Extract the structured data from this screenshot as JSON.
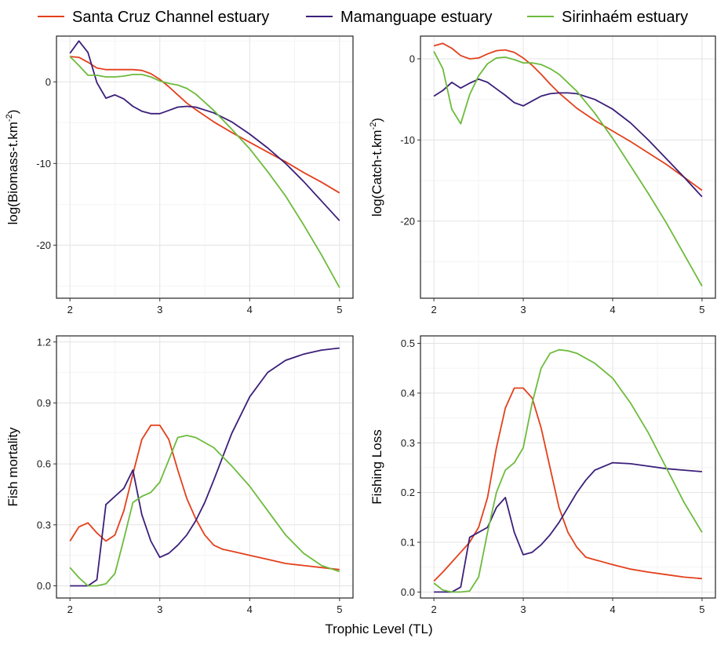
{
  "figure": {
    "xlabel": "Trophic Level (TL)"
  },
  "legend": [
    {
      "label": "Santa Cruz Channel estuary",
      "color": "#E3401C"
    },
    {
      "label": "Mamanguape estuary",
      "color": "#3B1F7A"
    },
    {
      "label": "Sirinhaém estuary",
      "color": "#6DBB3C"
    }
  ],
  "chart_data": [
    {
      "type": "line",
      "ylabel": "log(Biomass-t.km",
      "ylabel_sup": "-2",
      "ylabel_end": ")",
      "xlim": [
        1.85,
        5.15
      ],
      "ylim": [
        -26.5,
        5.6
      ],
      "xticks": [
        2,
        3,
        4,
        5
      ],
      "yticks": [
        0,
        -10,
        -20
      ],
      "grid": true,
      "series": [
        {
          "name": "Santa Cruz Channel estuary",
          "color": "#E3401C",
          "x": [
            2.0,
            2.1,
            2.2,
            2.3,
            2.4,
            2.5,
            2.6,
            2.7,
            2.8,
            2.9,
            3.0,
            3.1,
            3.2,
            3.3,
            3.4,
            3.6,
            3.8,
            4.0,
            4.2,
            4.4,
            4.6,
            4.8,
            5.0
          ],
          "y": [
            3.1,
            3.0,
            2.4,
            1.7,
            1.5,
            1.5,
            1.5,
            1.5,
            1.4,
            1.0,
            0.3,
            -0.6,
            -1.6,
            -2.6,
            -3.4,
            -4.9,
            -6.2,
            -7.4,
            -8.6,
            -9.8,
            -11.1,
            -12.3,
            -13.6
          ]
        },
        {
          "name": "Mamanguape estuary",
          "color": "#3B1F7A",
          "x": [
            2.0,
            2.1,
            2.2,
            2.3,
            2.4,
            2.5,
            2.6,
            2.7,
            2.8,
            2.9,
            3.0,
            3.1,
            3.2,
            3.3,
            3.4,
            3.6,
            3.8,
            4.0,
            4.2,
            4.4,
            4.6,
            4.8,
            5.0
          ],
          "y": [
            3.5,
            5.0,
            3.6,
            -0.1,
            -2.0,
            -1.6,
            -2.1,
            -3.0,
            -3.6,
            -3.9,
            -3.9,
            -3.5,
            -3.1,
            -3.0,
            -3.1,
            -3.8,
            -4.9,
            -6.4,
            -8.1,
            -10.0,
            -12.2,
            -14.6,
            -17.0
          ]
        },
        {
          "name": "Sirinhaém estuary",
          "color": "#6DBB3C",
          "x": [
            2.0,
            2.1,
            2.2,
            2.3,
            2.4,
            2.5,
            2.6,
            2.7,
            2.8,
            2.9,
            3.0,
            3.1,
            3.2,
            3.3,
            3.4,
            3.6,
            3.8,
            4.0,
            4.2,
            4.4,
            4.6,
            4.8,
            5.0
          ],
          "y": [
            3.1,
            2.0,
            0.8,
            0.8,
            0.6,
            0.6,
            0.7,
            0.9,
            0.9,
            0.6,
            0.1,
            -0.2,
            -0.4,
            -0.8,
            -1.5,
            -3.5,
            -5.8,
            -8.2,
            -11.0,
            -14.0,
            -17.5,
            -21.2,
            -25.2
          ]
        }
      ]
    },
    {
      "type": "line",
      "ylabel": "log(Catch-t.km",
      "ylabel_sup": "-2",
      "ylabel_end": ")",
      "xlim": [
        1.85,
        5.15
      ],
      "ylim": [
        -29.5,
        2.8
      ],
      "xticks": [
        2,
        3,
        4,
        5
      ],
      "yticks": [
        0,
        -10,
        -20
      ],
      "grid": true,
      "series": [
        {
          "name": "Santa Cruz Channel estuary",
          "color": "#E3401C",
          "x": [
            2.0,
            2.1,
            2.2,
            2.3,
            2.4,
            2.5,
            2.6,
            2.7,
            2.8,
            2.9,
            3.0,
            3.1,
            3.2,
            3.3,
            3.4,
            3.6,
            3.8,
            4.0,
            4.2,
            4.4,
            4.6,
            4.8,
            5.0
          ],
          "y": [
            1.6,
            1.9,
            1.3,
            0.4,
            0.0,
            0.1,
            0.6,
            1.0,
            1.1,
            0.8,
            0.1,
            -0.8,
            -1.9,
            -3.1,
            -4.2,
            -6.1,
            -7.6,
            -8.9,
            -10.2,
            -11.6,
            -13.0,
            -14.6,
            -16.2
          ]
        },
        {
          "name": "Mamanguape estuary",
          "color": "#3B1F7A",
          "x": [
            2.0,
            2.1,
            2.2,
            2.3,
            2.4,
            2.5,
            2.6,
            2.7,
            2.8,
            2.9,
            3.0,
            3.1,
            3.2,
            3.3,
            3.4,
            3.5,
            3.6,
            3.8,
            4.0,
            4.2,
            4.4,
            4.6,
            4.8,
            5.0
          ],
          "y": [
            -4.6,
            -3.9,
            -2.9,
            -3.6,
            -3.0,
            -2.5,
            -2.9,
            -3.7,
            -4.5,
            -5.4,
            -5.8,
            -5.2,
            -4.6,
            -4.3,
            -4.2,
            -4.2,
            -4.3,
            -5.0,
            -6.2,
            -7.9,
            -10.0,
            -12.3,
            -14.6,
            -17.0
          ]
        },
        {
          "name": "Sirinhaém estuary",
          "color": "#6DBB3C",
          "x": [
            2.0,
            2.1,
            2.2,
            2.3,
            2.4,
            2.5,
            2.6,
            2.7,
            2.8,
            2.9,
            3.0,
            3.1,
            3.2,
            3.3,
            3.4,
            3.6,
            3.8,
            4.0,
            4.2,
            4.4,
            4.6,
            4.8,
            5.0
          ],
          "y": [
            0.9,
            -1.2,
            -6.2,
            -8.0,
            -4.4,
            -2.1,
            -0.6,
            0.1,
            0.2,
            -0.1,
            -0.5,
            -0.5,
            -0.7,
            -1.2,
            -1.9,
            -4.0,
            -6.7,
            -9.8,
            -13.2,
            -16.6,
            -20.2,
            -24.1,
            -28.0
          ]
        }
      ]
    },
    {
      "type": "line",
      "ylabel": "Fish mortality",
      "xlim": [
        1.85,
        5.15
      ],
      "ylim": [
        -0.06,
        1.23
      ],
      "xticks": [
        2,
        3,
        4,
        5
      ],
      "yticks": [
        0.0,
        0.3,
        0.6,
        0.9,
        1.2
      ],
      "ytick_labels": [
        "0.0",
        "0.3",
        "0.6",
        "0.9",
        "1.2"
      ],
      "grid": true,
      "series": [
        {
          "name": "Santa Cruz Channel estuary",
          "color": "#E3401C",
          "x": [
            2.0,
            2.1,
            2.2,
            2.3,
            2.4,
            2.5,
            2.6,
            2.7,
            2.8,
            2.9,
            3.0,
            3.1,
            3.2,
            3.3,
            3.4,
            3.5,
            3.6,
            3.7,
            3.8,
            4.0,
            4.2,
            4.4,
            4.6,
            4.8,
            5.0
          ],
          "y": [
            0.22,
            0.29,
            0.31,
            0.26,
            0.22,
            0.25,
            0.37,
            0.55,
            0.72,
            0.79,
            0.79,
            0.72,
            0.57,
            0.43,
            0.33,
            0.25,
            0.2,
            0.18,
            0.17,
            0.15,
            0.13,
            0.11,
            0.1,
            0.09,
            0.08
          ]
        },
        {
          "name": "Mamanguape estuary",
          "color": "#3B1F7A",
          "x": [
            2.0,
            2.1,
            2.2,
            2.3,
            2.4,
            2.5,
            2.6,
            2.7,
            2.8,
            2.9,
            3.0,
            3.1,
            3.2,
            3.3,
            3.4,
            3.5,
            3.6,
            3.8,
            4.0,
            4.2,
            4.4,
            4.6,
            4.8,
            5.0
          ],
          "y": [
            0.0,
            0.0,
            0.0,
            0.03,
            0.4,
            0.44,
            0.48,
            0.57,
            0.35,
            0.22,
            0.14,
            0.16,
            0.2,
            0.25,
            0.32,
            0.41,
            0.52,
            0.75,
            0.93,
            1.05,
            1.11,
            1.14,
            1.16,
            1.17
          ]
        },
        {
          "name": "Sirinhaém estuary",
          "color": "#6DBB3C",
          "x": [
            2.0,
            2.1,
            2.2,
            2.3,
            2.4,
            2.5,
            2.6,
            2.7,
            2.8,
            2.9,
            3.0,
            3.1,
            3.2,
            3.3,
            3.4,
            3.6,
            3.8,
            4.0,
            4.2,
            4.4,
            4.6,
            4.8,
            5.0
          ],
          "y": [
            0.09,
            0.04,
            0.0,
            0.0,
            0.01,
            0.06,
            0.23,
            0.41,
            0.44,
            0.46,
            0.51,
            0.62,
            0.73,
            0.74,
            0.73,
            0.68,
            0.59,
            0.49,
            0.37,
            0.25,
            0.16,
            0.1,
            0.07
          ]
        }
      ]
    },
    {
      "type": "line",
      "ylabel": "Fishing Loss",
      "xlim": [
        1.85,
        5.15
      ],
      "ylim": [
        -0.012,
        0.515
      ],
      "xticks": [
        2,
        3,
        4,
        5
      ],
      "yticks": [
        0.0,
        0.1,
        0.2,
        0.3,
        0.4,
        0.5
      ],
      "ytick_labels": [
        "0.0",
        "0.1",
        "0.2",
        "0.3",
        "0.4",
        "0.5"
      ],
      "grid": true,
      "series": [
        {
          "name": "Santa Cruz Channel estuary",
          "color": "#E3401C",
          "x": [
            2.0,
            2.1,
            2.2,
            2.3,
            2.4,
            2.5,
            2.6,
            2.7,
            2.8,
            2.9,
            3.0,
            3.1,
            3.2,
            3.3,
            3.4,
            3.5,
            3.6,
            3.7,
            3.8,
            4.0,
            4.2,
            4.4,
            4.6,
            4.8,
            5.0
          ],
          "y": [
            0.022,
            0.04,
            0.06,
            0.08,
            0.1,
            0.13,
            0.19,
            0.29,
            0.37,
            0.41,
            0.41,
            0.39,
            0.33,
            0.25,
            0.17,
            0.12,
            0.09,
            0.07,
            0.065,
            0.055,
            0.046,
            0.04,
            0.035,
            0.03,
            0.027
          ]
        },
        {
          "name": "Mamanguape estuary",
          "color": "#3B1F7A",
          "x": [
            2.0,
            2.1,
            2.2,
            2.3,
            2.4,
            2.5,
            2.6,
            2.7,
            2.8,
            2.9,
            3.0,
            3.1,
            3.2,
            3.3,
            3.4,
            3.5,
            3.6,
            3.7,
            3.8,
            4.0,
            4.2,
            4.4,
            4.6,
            4.8,
            5.0
          ],
          "y": [
            0.0,
            0.0,
            0.0,
            0.01,
            0.11,
            0.12,
            0.13,
            0.17,
            0.19,
            0.12,
            0.075,
            0.08,
            0.095,
            0.115,
            0.14,
            0.17,
            0.2,
            0.225,
            0.245,
            0.26,
            0.258,
            0.253,
            0.248,
            0.245,
            0.242
          ]
        },
        {
          "name": "Sirinhaém estuary",
          "color": "#6DBB3C",
          "x": [
            2.0,
            2.1,
            2.2,
            2.3,
            2.4,
            2.5,
            2.6,
            2.7,
            2.8,
            2.9,
            3.0,
            3.1,
            3.2,
            3.3,
            3.4,
            3.5,
            3.6,
            3.8,
            4.0,
            4.2,
            4.4,
            4.6,
            4.8,
            5.0
          ],
          "y": [
            0.018,
            0.004,
            0.0,
            0.0,
            0.002,
            0.03,
            0.12,
            0.2,
            0.245,
            0.26,
            0.29,
            0.38,
            0.45,
            0.48,
            0.487,
            0.485,
            0.48,
            0.46,
            0.43,
            0.38,
            0.32,
            0.25,
            0.18,
            0.12
          ]
        }
      ]
    }
  ]
}
